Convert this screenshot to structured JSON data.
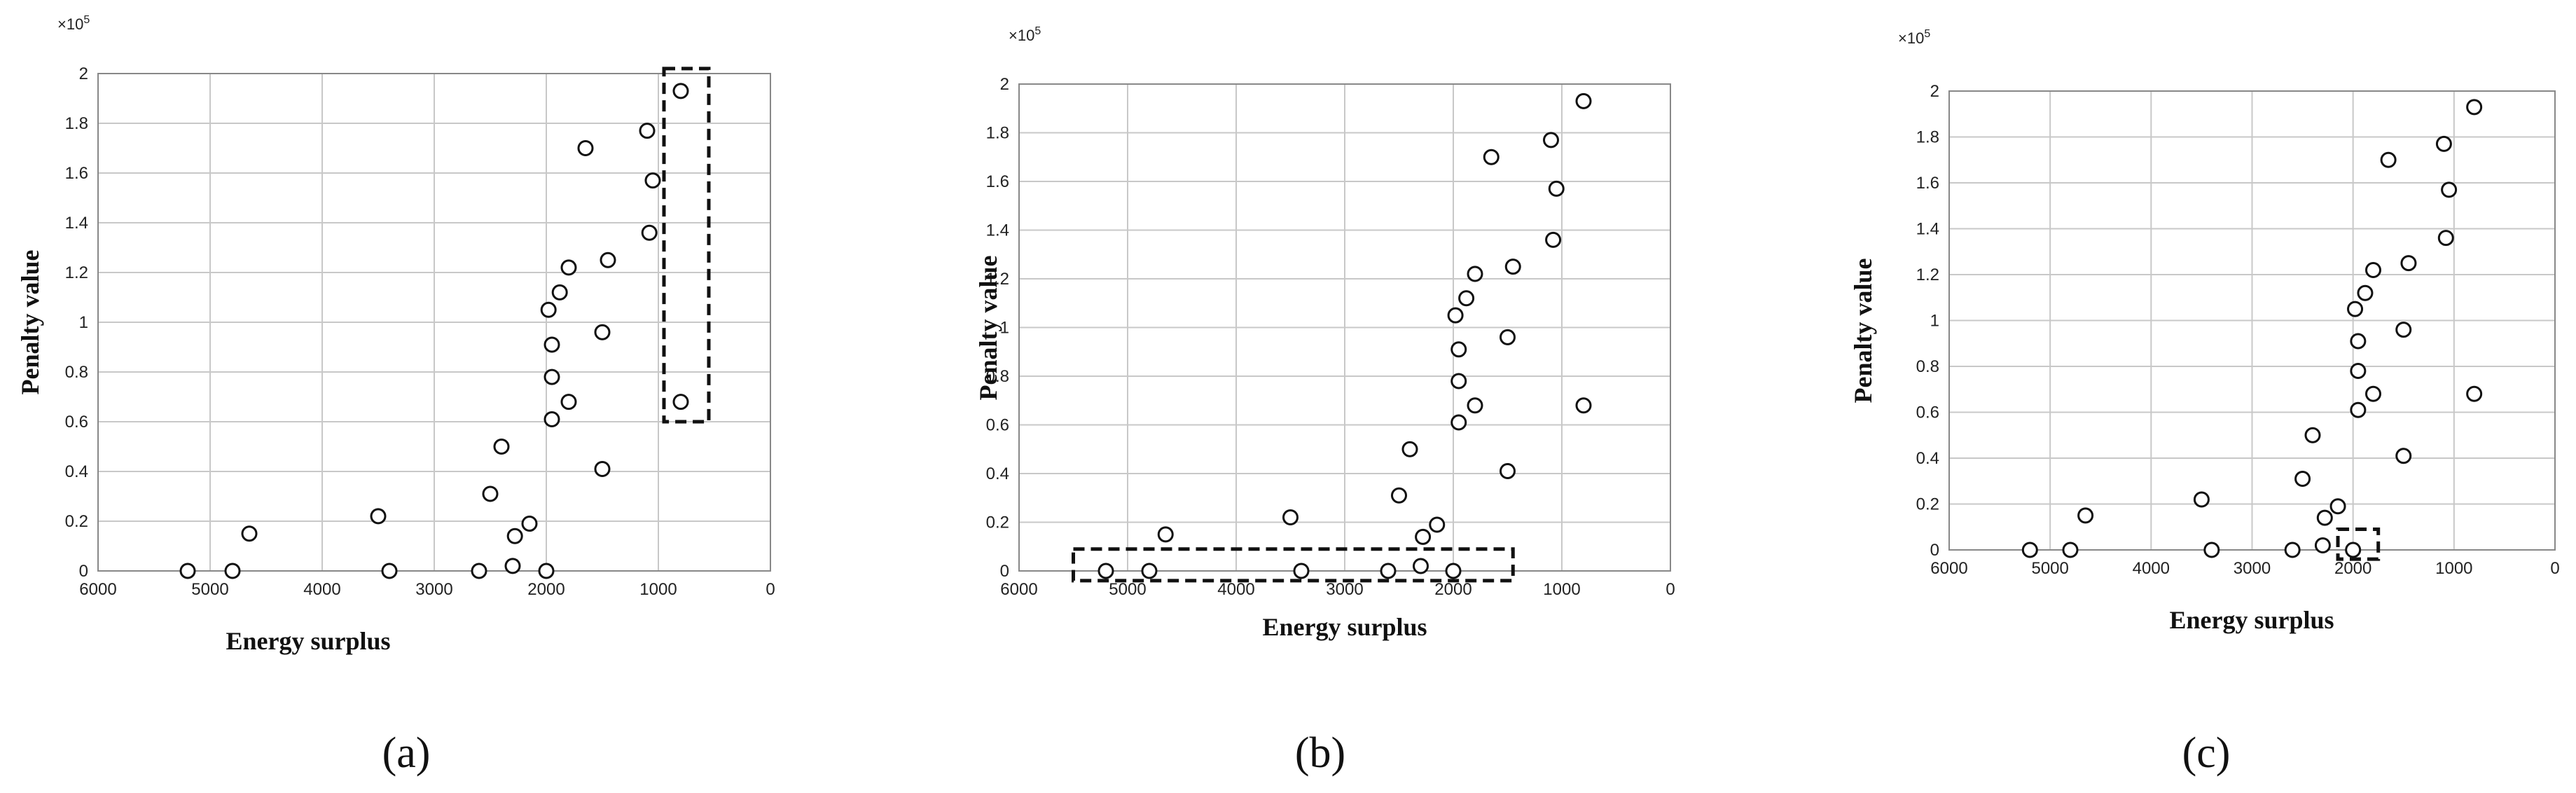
{
  "chart_data": [
    {
      "type": "scatter",
      "panel_label": "(a)",
      "xlabel": "Energy surplus",
      "ylabel": "Penalty value",
      "y_exponent": "×10",
      "y_exponent_power": "5",
      "xlim": [
        6000,
        0
      ],
      "ylim": [
        0,
        2
      ],
      "xticks": [
        "6000",
        "5000",
        "4000",
        "3000",
        "2000",
        "1000",
        "0"
      ],
      "xtick_values": [
        6000,
        5000,
        4000,
        3000,
        2000,
        1000,
        0
      ],
      "yticks": [
        "0",
        "0.2",
        "0.4",
        "0.6",
        "0.8",
        "1",
        "1.2",
        "1.4",
        "1.6",
        "1.8",
        "2"
      ],
      "ytick_values": [
        0,
        0.2,
        0.4,
        0.6,
        0.8,
        1,
        1.2,
        1.4,
        1.6,
        1.8,
        2
      ],
      "points": [
        [
          5200,
          0
        ],
        [
          4800,
          0
        ],
        [
          4650,
          0.15
        ],
        [
          3500,
          0.22
        ],
        [
          3400,
          0
        ],
        [
          2600,
          0
        ],
        [
          2500,
          0.31
        ],
        [
          2400,
          0.5
        ],
        [
          2300,
          0.02
        ],
        [
          2280,
          0.14
        ],
        [
          2150,
          0.19
        ],
        [
          2000,
          0
        ],
        [
          1980,
          1.05
        ],
        [
          1950,
          0.91
        ],
        [
          1950,
          0.78
        ],
        [
          1950,
          0.61
        ],
        [
          1880,
          1.12
        ],
        [
          1800,
          1.22
        ],
        [
          1800,
          0.68
        ],
        [
          1650,
          1.7
        ],
        [
          1500,
          0.96
        ],
        [
          1500,
          0.41
        ],
        [
          1450,
          1.25
        ],
        [
          1100,
          1.77
        ],
        [
          1080,
          1.36
        ],
        [
          1050,
          1.57
        ],
        [
          800,
          1.93
        ],
        [
          800,
          0.68
        ]
      ],
      "highlight_region": {
        "x": [
          950,
          550
        ],
        "y": [
          0.6,
          2.02
        ]
      }
    },
    {
      "type": "scatter",
      "panel_label": "(b)",
      "xlabel": "Energy surplus",
      "ylabel": "Penalty value",
      "y_exponent": "×10",
      "y_exponent_power": "5",
      "xlim": [
        6000,
        0
      ],
      "ylim": [
        0,
        2
      ],
      "xticks": [
        "6000",
        "5000",
        "4000",
        "3000",
        "2000",
        "1000",
        "0"
      ],
      "xtick_values": [
        6000,
        5000,
        4000,
        3000,
        2000,
        1000,
        0
      ],
      "yticks": [
        "0",
        "0.2",
        "0.4",
        "0.6",
        "0.8",
        "1",
        "1.2",
        "1.4",
        "1.6",
        "1.8",
        "2"
      ],
      "ytick_values": [
        0,
        0.2,
        0.4,
        0.6,
        0.8,
        1,
        1.2,
        1.4,
        1.6,
        1.8,
        2
      ],
      "points": [
        [
          5200,
          0
        ],
        [
          4800,
          0
        ],
        [
          4650,
          0.15
        ],
        [
          3500,
          0.22
        ],
        [
          3400,
          0
        ],
        [
          2600,
          0
        ],
        [
          2500,
          0.31
        ],
        [
          2400,
          0.5
        ],
        [
          2300,
          0.02
        ],
        [
          2280,
          0.14
        ],
        [
          2150,
          0.19
        ],
        [
          2000,
          0
        ],
        [
          1980,
          1.05
        ],
        [
          1950,
          0.91
        ],
        [
          1950,
          0.78
        ],
        [
          1950,
          0.61
        ],
        [
          1880,
          1.12
        ],
        [
          1800,
          1.22
        ],
        [
          1800,
          0.68
        ],
        [
          1650,
          1.7
        ],
        [
          1500,
          0.96
        ],
        [
          1500,
          0.41
        ],
        [
          1450,
          1.25
        ],
        [
          1100,
          1.77
        ],
        [
          1080,
          1.36
        ],
        [
          1050,
          1.57
        ],
        [
          800,
          1.93
        ],
        [
          800,
          0.68
        ]
      ],
      "highlight_region": {
        "x": [
          5500,
          1450
        ],
        "y": [
          -0.04,
          0.09
        ]
      }
    },
    {
      "type": "scatter",
      "panel_label": "(c)",
      "xlabel": "Energy surplus",
      "ylabel": "Penalty value",
      "y_exponent": "×10",
      "y_exponent_power": "5",
      "xlim": [
        6000,
        0
      ],
      "ylim": [
        0,
        2
      ],
      "xticks": [
        "6000",
        "5000",
        "4000",
        "3000",
        "2000",
        "1000",
        "0"
      ],
      "xtick_values": [
        6000,
        5000,
        4000,
        3000,
        2000,
        1000,
        0
      ],
      "yticks": [
        "0",
        "0.2",
        "0.4",
        "0.6",
        "0.8",
        "1",
        "1.2",
        "1.4",
        "1.6",
        "1.8",
        "2"
      ],
      "ytick_values": [
        0,
        0.2,
        0.4,
        0.6,
        0.8,
        1,
        1.2,
        1.4,
        1.6,
        1.8,
        2
      ],
      "points": [
        [
          5200,
          0
        ],
        [
          4800,
          0
        ],
        [
          4650,
          0.15
        ],
        [
          3500,
          0.22
        ],
        [
          3400,
          0
        ],
        [
          2600,
          0
        ],
        [
          2500,
          0.31
        ],
        [
          2400,
          0.5
        ],
        [
          2300,
          0.02
        ],
        [
          2280,
          0.14
        ],
        [
          2150,
          0.19
        ],
        [
          2000,
          0
        ],
        [
          1980,
          1.05
        ],
        [
          1950,
          0.91
        ],
        [
          1950,
          0.78
        ],
        [
          1950,
          0.61
        ],
        [
          1880,
          1.12
        ],
        [
          1800,
          1.22
        ],
        [
          1800,
          0.68
        ],
        [
          1650,
          1.7
        ],
        [
          1500,
          0.96
        ],
        [
          1500,
          0.41
        ],
        [
          1450,
          1.25
        ],
        [
          1100,
          1.77
        ],
        [
          1080,
          1.36
        ],
        [
          1050,
          1.57
        ],
        [
          800,
          1.93
        ],
        [
          800,
          0.68
        ]
      ],
      "highlight_region": {
        "x": [
          2150,
          1750
        ],
        "y": [
          -0.04,
          0.09
        ]
      }
    }
  ]
}
